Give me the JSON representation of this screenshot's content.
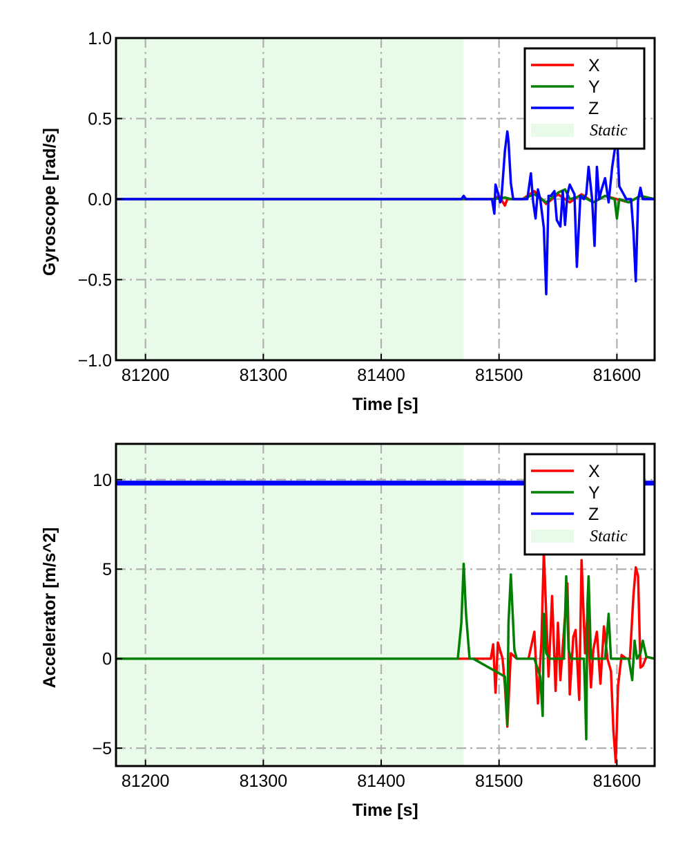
{
  "chart_data": [
    {
      "type": "line",
      "xlabel": "Time [s]",
      "ylabel": "Gyroscope [rad/s]",
      "xlim": [
        81175,
        81632
      ],
      "ylim": [
        -1.0,
        1.0
      ],
      "xticks": [
        81200,
        81300,
        81400,
        81500,
        81600
      ],
      "xtick_labels": [
        "81200",
        "81300",
        "81400",
        "81500",
        "81600"
      ],
      "yticks": [
        -1.0,
        -0.5,
        0.0,
        0.5,
        1.0
      ],
      "ytick_labels": [
        "−1.0",
        "−0.5",
        "0.0",
        "0.5",
        "1.0"
      ],
      "grid": true,
      "legend_position": "top-right",
      "static_region": {
        "label": "Static",
        "x_start": 81175,
        "x_end": 81470,
        "color": "#e8fbe8"
      },
      "series": [
        {
          "name": "X",
          "color": "#ff0000",
          "x": [
            81175,
            81470,
            81495,
            81500,
            81505,
            81507,
            81510,
            81520,
            81530,
            81540,
            81550,
            81560,
            81570,
            81580,
            81590,
            81600,
            81610,
            81620,
            81632
          ],
          "y": [
            0,
            0,
            0,
            0.02,
            -0.04,
            0.0,
            0.0,
            0,
            0.05,
            -0.03,
            0.03,
            -0.02,
            0.03,
            -0.02,
            0.02,
            0.0,
            -0.02,
            0.02,
            0
          ]
        },
        {
          "name": "Y",
          "color": "#008000",
          "x": [
            81175,
            81470,
            81495,
            81505,
            81510,
            81520,
            81530,
            81540,
            81550,
            81556,
            81560,
            81570,
            81580,
            81590,
            81598,
            81600,
            81602,
            81610,
            81620,
            81632
          ],
          "y": [
            0,
            0,
            0,
            0.01,
            0.0,
            0,
            0.03,
            -0.02,
            0.04,
            0.06,
            0.0,
            0.02,
            -0.02,
            0.02,
            0.0,
            -0.12,
            0.0,
            -0.02,
            0.02,
            0
          ]
        },
        {
          "name": "Z",
          "color": "#0000ff",
          "x": [
            81175,
            81468,
            81470,
            81472,
            81494,
            81496,
            81497,
            81499,
            81501,
            81502,
            81505,
            81507,
            81508,
            81510,
            81512,
            81518,
            81524,
            81527,
            81529,
            81531,
            81533,
            81535,
            81538,
            81540,
            81542,
            81544,
            81547,
            81549,
            81552,
            81554,
            81556,
            81558,
            81560,
            81564,
            81566,
            81569,
            81572,
            81574,
            81576,
            81579,
            81581,
            81583,
            81585,
            81587,
            81590,
            81593,
            81596,
            81598,
            81600,
            81602,
            81605,
            81608,
            81612,
            81614,
            81616,
            81618,
            81620,
            81622,
            81632
          ],
          "y": [
            0,
            0,
            0.02,
            0,
            0,
            -0.09,
            0.09,
            0.04,
            -0.02,
            0.0,
            0.3,
            0.42,
            0.36,
            0.1,
            0.0,
            0.0,
            0.0,
            0.16,
            -0.02,
            -0.12,
            0.06,
            0.0,
            -0.18,
            -0.59,
            0.02,
            0.02,
            0.05,
            -0.13,
            -0.17,
            0.05,
            -0.16,
            0.03,
            0.09,
            0.03,
            -0.42,
            0.02,
            0.0,
            0.03,
            0.2,
            0.0,
            -0.29,
            0.2,
            0.0,
            0.06,
            0.13,
            -0.02,
            0.2,
            0.3,
            0.42,
            0.08,
            0.04,
            0.0,
            0.0,
            -0.2,
            -0.51,
            0.0,
            0.07,
            0.0,
            0
          ]
        }
      ]
    },
    {
      "type": "line",
      "xlabel": "Time [s]",
      "ylabel": "Accelerator [m/s^2]",
      "xlim": [
        81175,
        81632
      ],
      "ylim": [
        -6,
        12
      ],
      "xticks": [
        81200,
        81300,
        81400,
        81500,
        81600
      ],
      "xtick_labels": [
        "81200",
        "81300",
        "81400",
        "81500",
        "81600"
      ],
      "yticks": [
        -5,
        0,
        5,
        10
      ],
      "ytick_labels": [
        "−5",
        "0",
        "5",
        "10"
      ],
      "grid": true,
      "legend_position": "top-right",
      "static_region": {
        "label": "Static",
        "x_start": 81175,
        "x_end": 81470,
        "color": "#e8fbe8"
      },
      "series": [
        {
          "name": "X",
          "color": "#ff0000",
          "x": [
            81175,
            81470,
            81493,
            81495,
            81497,
            81499,
            81503,
            81505,
            81507,
            81510,
            81515,
            81525,
            81530,
            81533,
            81536,
            81538,
            81540,
            81542,
            81545,
            81548,
            81550,
            81552,
            81555,
            81558,
            81560,
            81563,
            81565,
            81568,
            81570,
            81573,
            81575,
            81578,
            81580,
            81583,
            81586,
            81589,
            81592,
            81595,
            81597,
            81599,
            81601,
            81604,
            81608,
            81611,
            81614,
            81616,
            81618,
            81620,
            81622,
            81625,
            81632
          ],
          "y": [
            0,
            0,
            0,
            0.8,
            -1.9,
            0.9,
            0.0,
            -1.5,
            -3.8,
            0.3,
            0.0,
            0.0,
            1.5,
            -2.5,
            1.0,
            6.0,
            2.5,
            -1.0,
            3.5,
            -1.8,
            2.0,
            -1.2,
            1.5,
            4.2,
            -2.0,
            1.2,
            1.6,
            -2.3,
            5.5,
            0.3,
            2.5,
            -1.6,
            0.5,
            1.5,
            -1.4,
            1.8,
            0.0,
            -0.7,
            -4.0,
            -5.8,
            -1.5,
            0.2,
            0.0,
            0.0,
            3.5,
            5.1,
            4.6,
            -0.5,
            -0.4,
            0.1,
            0
          ]
        },
        {
          "name": "Y",
          "color": "#008000",
          "x": [
            81175,
            81465,
            81468,
            81470,
            81472,
            81475,
            81478,
            81505,
            81507,
            81508,
            81510,
            81513,
            81515,
            81530,
            81535,
            81537,
            81538,
            81540,
            81543,
            81555,
            81557,
            81559,
            81561,
            81572,
            81573,
            81574,
            81575,
            81576,
            81578,
            81590,
            81593,
            81595,
            81597,
            81610,
            81613,
            81615,
            81617,
            81620,
            81622,
            81625,
            81632
          ],
          "y": [
            0,
            0,
            2.0,
            5.3,
            2.5,
            0.0,
            0.0,
            -1.0,
            -3.7,
            2.0,
            4.7,
            0.5,
            0.0,
            0.0,
            -1.0,
            -3.2,
            2.5,
            0.3,
            0.0,
            0.0,
            4.6,
            0.5,
            0.0,
            0.0,
            -2.0,
            -4.5,
            3.0,
            4.6,
            0.0,
            0.0,
            2.5,
            0.0,
            0.0,
            0.0,
            -1.2,
            1.0,
            0.0,
            0.3,
            1.0,
            0.1,
            0
          ]
        },
        {
          "name": "Z",
          "color": "#0000ff",
          "x": [
            81175,
            81632
          ],
          "y": [
            9.81,
            9.81
          ]
        }
      ]
    }
  ]
}
